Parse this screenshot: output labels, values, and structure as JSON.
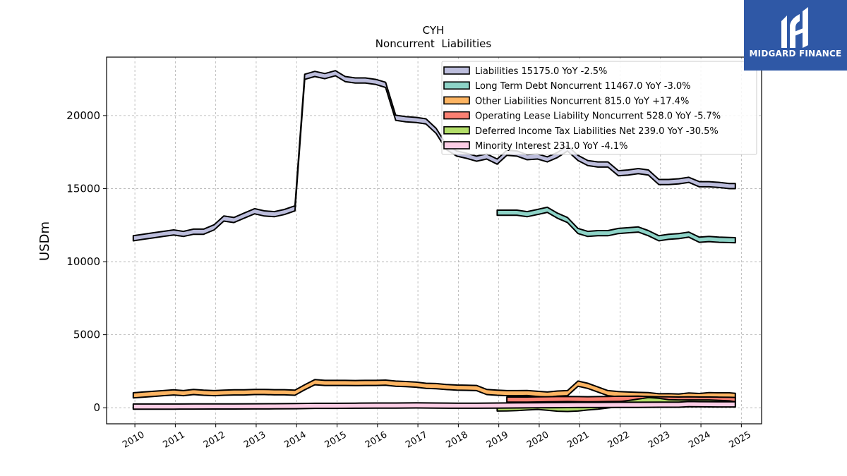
{
  "brand": {
    "name": "MIDGARD FINANCE",
    "bg": "#2f58a6"
  },
  "chart_data": {
    "type": "area",
    "title": "CYH",
    "subtitle": "Noncurrent  Liabilities",
    "ylabel": "USDm",
    "xlabel": "",
    "xlim": [
      2009.3,
      2025.5
    ],
    "ylim": [
      -1100,
      24000
    ],
    "x_ticks": [
      2010,
      2011,
      2012,
      2013,
      2014,
      2015,
      2016,
      2017,
      2018,
      2019,
      2020,
      2021,
      2022,
      2023,
      2024,
      2025
    ],
    "y_ticks": [
      0,
      5000,
      10000,
      15000,
      20000
    ],
    "grid": true,
    "legend_position": "top-right",
    "series": [
      {
        "name": "Liabilities",
        "legend": "Liabilities  15175.0 YoY -2.5%",
        "color": "#bcbddc",
        "x": [
          2009.96,
          2010.2,
          2010.45,
          2010.7,
          2010.96,
          2011.2,
          2011.45,
          2011.7,
          2011.96,
          2012.2,
          2012.45,
          2012.7,
          2012.96,
          2013.2,
          2013.45,
          2013.7,
          2013.96,
          2014.2,
          2014.45,
          2014.7,
          2014.96,
          2015.2,
          2015.45,
          2015.7,
          2015.96,
          2016.2,
          2016.45,
          2016.7,
          2016.96,
          2017.2,
          2017.45,
          2017.7,
          2017.96,
          2018.2,
          2018.45,
          2018.7,
          2018.96,
          2019.2,
          2019.45,
          2019.7,
          2019.96,
          2020.2,
          2020.45,
          2020.7,
          2020.96,
          2021.2,
          2021.45,
          2021.7,
          2021.96,
          2022.2,
          2022.45,
          2022.7,
          2022.96,
          2023.2,
          2023.45,
          2023.7,
          2023.96,
          2024.2,
          2024.45,
          2024.7,
          2024.85
        ],
        "values": [
          11600,
          11700,
          11800,
          11900,
          12000,
          11900,
          12050,
          12050,
          12350,
          12950,
          12850,
          13150,
          13450,
          13300,
          13250,
          13400,
          13650,
          22650,
          22850,
          22700,
          22900,
          22500,
          22400,
          22400,
          22300,
          22100,
          19850,
          19750,
          19700,
          19600,
          18950,
          17850,
          17400,
          17250,
          17050,
          17200,
          16850,
          17450,
          17400,
          17150,
          17200,
          17000,
          17300,
          17750,
          17100,
          16750,
          16650,
          16650,
          16050,
          16100,
          16200,
          16100,
          15450,
          15450,
          15500,
          15600,
          15300,
          15300,
          15250,
          15175,
          15175
        ]
      },
      {
        "name": "Long Term Debt Noncurrent",
        "legend": "Long Term Debt Noncurrent  11467.0 YoY -3.0%",
        "color": "#8dd3c7",
        "x": [
          2018.96,
          2019.2,
          2019.45,
          2019.7,
          2019.96,
          2020.2,
          2020.45,
          2020.7,
          2020.96,
          2021.2,
          2021.45,
          2021.7,
          2021.96,
          2022.2,
          2022.45,
          2022.7,
          2022.96,
          2023.2,
          2023.45,
          2023.7,
          2023.96,
          2024.2,
          2024.45,
          2024.7,
          2024.85
        ],
        "values": [
          13350,
          13350,
          13350,
          13250,
          13400,
          13550,
          13150,
          12850,
          12100,
          11900,
          11950,
          11950,
          12100,
          12150,
          12200,
          11950,
          11600,
          11700,
          11750,
          11850,
          11500,
          11550,
          11500,
          11480,
          11467
        ]
      },
      {
        "name": "Other Liabilities Noncurrent",
        "legend": "Other Liabilities Noncurrent  815.0 YoY +17.4%",
        "color": "#fdb462",
        "x": [
          2009.96,
          2010.2,
          2010.45,
          2010.7,
          2010.96,
          2011.2,
          2011.45,
          2011.7,
          2011.96,
          2012.2,
          2012.45,
          2012.7,
          2012.96,
          2013.2,
          2013.45,
          2013.7,
          2013.96,
          2014.2,
          2014.45,
          2014.7,
          2014.96,
          2015.2,
          2015.45,
          2015.7,
          2015.96,
          2016.2,
          2016.45,
          2016.7,
          2016.96,
          2017.2,
          2017.45,
          2017.7,
          2017.96,
          2018.2,
          2018.45,
          2018.7,
          2018.96,
          2019.2,
          2019.45,
          2019.7,
          2019.96,
          2020.2,
          2020.45,
          2020.7,
          2020.96,
          2021.2,
          2021.45,
          2021.7,
          2021.96,
          2022.2,
          2022.45,
          2022.7,
          2022.96,
          2023.2,
          2023.45,
          2023.7,
          2023.96,
          2024.2,
          2024.45,
          2024.7,
          2024.85
        ],
        "values": [
          850,
          900,
          950,
          1000,
          1050,
          1000,
          1080,
          1030,
          1000,
          1030,
          1050,
          1050,
          1080,
          1080,
          1060,
          1060,
          1030,
          1400,
          1750,
          1700,
          1700,
          1700,
          1690,
          1700,
          1700,
          1720,
          1650,
          1620,
          1580,
          1500,
          1480,
          1420,
          1380,
          1370,
          1350,
          1080,
          1030,
          1000,
          1000,
          1010,
          950,
          900,
          970,
          1000,
          1650,
          1500,
          1250,
          1000,
          930,
          900,
          880,
          860,
          780,
          790,
          760,
          840,
          800,
          860,
          850,
          850,
          815
        ]
      },
      {
        "name": "Operating Lease Liability Noncurrent",
        "legend": "Operating Lease Liability Noncurrent  528.0 YoY -5.7%",
        "color": "#fb8072",
        "x": [
          2019.2,
          2019.45,
          2019.7,
          2019.96,
          2020.2,
          2020.45,
          2020.7,
          2020.96,
          2021.2,
          2021.45,
          2021.7,
          2021.96,
          2022.2,
          2022.45,
          2022.7,
          2022.96,
          2023.2,
          2023.45,
          2023.7,
          2023.96,
          2024.2,
          2024.45,
          2024.7,
          2024.85
        ],
        "values": [
          560,
          560,
          560,
          570,
          580,
          590,
          600,
          590,
          580,
          590,
          600,
          610,
          610,
          620,
          600,
          580,
          570,
          560,
          570,
          560,
          560,
          550,
          540,
          528
        ]
      },
      {
        "name": "Deferred Income Tax Liabilities Net",
        "legend": "Deferred Income Tax Liabilities Net  239.0 YoY -30.5%",
        "color": "#b3de69",
        "x": [
          2018.96,
          2019.2,
          2019.45,
          2019.7,
          2019.96,
          2020.2,
          2020.45,
          2020.7,
          2020.96,
          2021.2,
          2021.45,
          2021.7,
          2021.96,
          2022.2,
          2022.45,
          2022.7,
          2022.96,
          2023.2,
          2023.45,
          2023.7,
          2023.96,
          2024.2,
          2024.45,
          2024.7,
          2024.85
        ],
        "values": [
          -50,
          -40,
          -20,
          20,
          60,
          0,
          -60,
          -80,
          -50,
          20,
          80,
          160,
          240,
          320,
          420,
          520,
          470,
          380,
          360,
          360,
          360,
          360,
          330,
          300,
          239
        ]
      },
      {
        "name": "Minority Interest",
        "legend": "Minority Interest  231.0 YoY -4.1%",
        "color": "#fccde5",
        "x": [
          2009.96,
          2010.45,
          2010.96,
          2011.45,
          2011.96,
          2012.45,
          2012.96,
          2013.45,
          2013.96,
          2014.45,
          2014.96,
          2015.45,
          2015.96,
          2016.45,
          2016.96,
          2017.45,
          2017.96,
          2018.45,
          2018.96,
          2019.45,
          2019.96,
          2020.45,
          2020.96,
          2021.45,
          2021.96,
          2022.45,
          2022.96,
          2023.45,
          2023.7,
          2023.96,
          2024.45,
          2024.85
        ],
        "values": [
          80,
          80,
          80,
          85,
          90,
          90,
          95,
          100,
          110,
          130,
          130,
          140,
          150,
          150,
          160,
          150,
          140,
          140,
          150,
          160,
          170,
          180,
          190,
          190,
          200,
          200,
          210,
          210,
          250,
          240,
          230,
          231
        ]
      }
    ]
  }
}
